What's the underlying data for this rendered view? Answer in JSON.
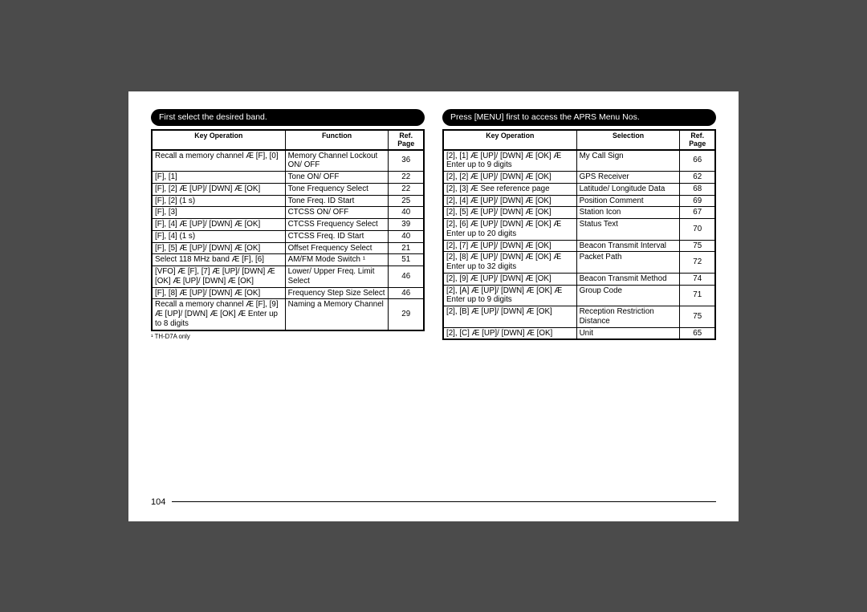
{
  "pageNumber": "104",
  "left": {
    "banner": "First select the desired band.",
    "headers": {
      "c1": "Key Operation",
      "c2": "Function",
      "c3": "Ref. Page"
    },
    "rows": [
      {
        "k": "Recall a memory channel Æ [F], [0]",
        "f": "Memory Channel Lockout ON/ OFF",
        "p": "36"
      },
      {
        "k": "[F], [1]",
        "f": "Tone ON/ OFF",
        "p": "22"
      },
      {
        "k": "[F], [2] Æ [UP]/ [DWN] Æ [OK]",
        "f": "Tone Frequency Select",
        "p": "22"
      },
      {
        "k": "[F], [2] (1 s)",
        "f": "Tone Freq. ID Start",
        "p": "25"
      },
      {
        "k": "[F], [3]",
        "f": "CTCSS ON/ OFF",
        "p": "40"
      },
      {
        "k": "[F], [4] Æ [UP]/ [DWN] Æ [OK]",
        "f": "CTCSS Frequency Select",
        "p": "39"
      },
      {
        "k": "[F], [4] (1 s)",
        "f": "CTCSS Freq. ID Start",
        "p": "40"
      },
      {
        "k": "[F], [5] Æ [UP]/ [DWN] Æ [OK]",
        "f": "Offset Frequency Select",
        "p": "21"
      },
      {
        "k": "Select 118 MHz band Æ [F], [6]",
        "f": "AM/FM Mode Switch ¹",
        "p": "51"
      },
      {
        "k": "[VFO] Æ [F], [7] Æ [UP]/ [DWN] Æ [OK] Æ [UP]/ [DWN] Æ [OK]",
        "f": "Lower/ Upper Freq. Limit Select",
        "p": "46"
      },
      {
        "k": "[F], [8] Æ [UP]/ [DWN] Æ [OK]",
        "f": "Frequency Step Size Select",
        "p": "46"
      },
      {
        "k": "Recall a memory channel Æ [F], [9] Æ [UP]/ [DWN] Æ [OK] Æ Enter up to 8 digits",
        "f": "Naming a Memory Channel",
        "p": "29"
      }
    ],
    "footnote": "¹  TH-D7A only"
  },
  "right": {
    "banner": "Press [MENU] first to access the APRS Menu Nos.",
    "headers": {
      "c1": "Key Operation",
      "c2": "Selection",
      "c3": "Ref. Page"
    },
    "rows": [
      {
        "k": "[2], [1] Æ [UP]/ [DWN] Æ [OK] Æ Enter up to 9 digits",
        "f": "My Call Sign",
        "p": "66"
      },
      {
        "k": "[2], [2] Æ [UP]/ [DWN] Æ [OK]",
        "f": "GPS Receiver",
        "p": "62"
      },
      {
        "k": "[2], [3] Æ See reference page",
        "f": "Latitude/ Longitude Data",
        "p": "68"
      },
      {
        "k": "[2], [4] Æ [UP]/ [DWN] Æ [OK]",
        "f": "Position Comment",
        "p": "69"
      },
      {
        "k": "[2], [5] Æ [UP]/ [DWN] Æ [OK]",
        "f": "Station Icon",
        "p": "67"
      },
      {
        "k": "[2], [6] Æ [UP]/ [DWN] Æ [OK] Æ Enter up to 20 digits",
        "f": "Status Text",
        "p": "70"
      },
      {
        "k": "[2], [7] Æ [UP]/ [DWN] Æ [OK]",
        "f": "Beacon Transmit Interval",
        "p": "75"
      },
      {
        "k": "[2], [8] Æ [UP]/ [DWN] Æ [OK] Æ Enter up to 32 digits",
        "f": "Packet Path",
        "p": "72"
      },
      {
        "k": "[2], [9] Æ [UP]/ [DWN] Æ [OK]",
        "f": "Beacon Transmit Method",
        "p": "74"
      },
      {
        "k": "[2], [A] Æ [UP]/ [DWN] Æ [OK] Æ Enter up to 9 digits",
        "f": "Group Code",
        "p": "71"
      },
      {
        "k": "[2], [B] Æ [UP]/ [DWN] Æ [OK]",
        "f": "Reception Restriction Distance",
        "p": "75"
      },
      {
        "k": "[2], [C] Æ [UP]/ [DWN] Æ [OK]",
        "f": "Unit",
        "p": "65"
      }
    ]
  }
}
